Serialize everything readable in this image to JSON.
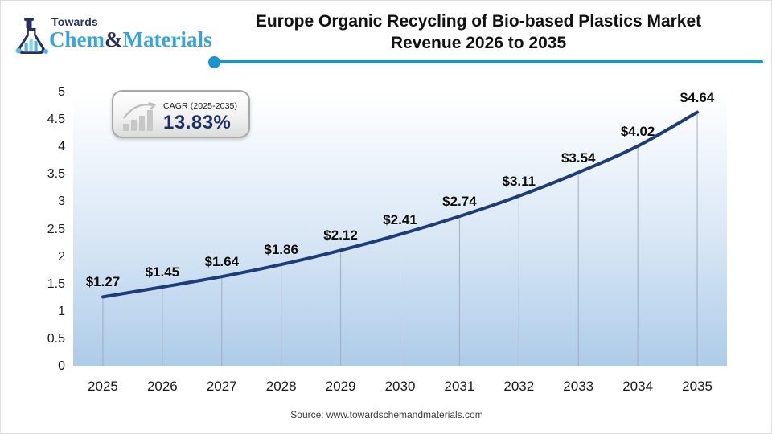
{
  "logo": {
    "towards": "Towards",
    "chem": "Chem",
    "ampersand": "&",
    "materials": "Materials",
    "navy": "#24315e",
    "light_blue": "#36a4dc"
  },
  "header": {
    "title_line1": "Europe Organic Recycling of Bio-based Plastics Market",
    "title_line2": "Revenue 2026 to 2035",
    "divider_color": "#1b93d2"
  },
  "cagr_badge": {
    "label": "CAGR (2025-2035)",
    "value": "13.83%",
    "value_color": "#1f2f66"
  },
  "chart_data": {
    "type": "line",
    "title": "Europe Organic Recycling of Bio-based Plastics Market Revenue 2026 to 2035",
    "categories": [
      "2025",
      "2026",
      "2027",
      "2028",
      "2029",
      "2030",
      "2031",
      "2032",
      "2033",
      "2034",
      "2035"
    ],
    "values": [
      1.27,
      1.45,
      1.64,
      1.86,
      2.12,
      2.41,
      2.74,
      3.11,
      3.54,
      4.02,
      4.64
    ],
    "point_labels": [
      "$1.27",
      "$1.45",
      "$1.64",
      "$1.86",
      "$2.12",
      "$2.41",
      "$2.74",
      "$3.11",
      "$3.54",
      "$4.02",
      "$4.64"
    ],
    "ylim": [
      0,
      5
    ],
    "yticks": [
      0,
      0.5,
      1,
      1.5,
      2,
      2.5,
      3,
      3.5,
      4,
      4.5,
      5
    ],
    "ytick_labels": [
      "0",
      "0.5",
      "1",
      "1.5",
      "2",
      "2.5",
      "3",
      "3.5",
      "4",
      "4.5",
      "5"
    ],
    "xlabel": "",
    "ylabel": "",
    "grid": false,
    "legend": false,
    "line_color": "#1e3c78",
    "dropline_color": "#9faebd",
    "plot_gradient_top": "#ffffff",
    "plot_gradient_bottom": "#aecbe8"
  },
  "footer": {
    "source": "Source: www.towardschemandmaterials.com"
  }
}
